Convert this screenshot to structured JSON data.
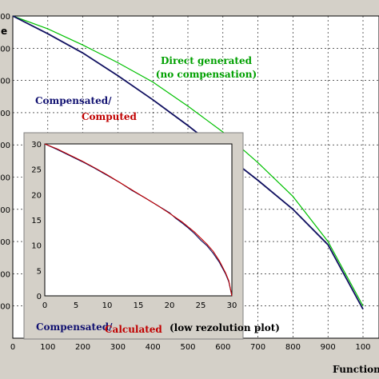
{
  "chart_data": [
    {
      "type": "line",
      "title": "",
      "xlabel": "Functions",
      "ylabel": "e",
      "xlim": [
        0,
        1000
      ],
      "ylim": [
        0,
        1000
      ],
      "grid": true,
      "x_ticks": [
        "0",
        "100",
        "200",
        "300",
        "400",
        "500",
        "600",
        "700",
        "800",
        "900",
        "100"
      ],
      "y_ticks": [
        "00",
        "00",
        "00",
        "00",
        "00",
        "00",
        "00",
        "00",
        "00",
        "00"
      ],
      "series": [
        {
          "name": "Direct generated (no compensation)",
          "color": "#00c000",
          "x": [
            0,
            100,
            200,
            300,
            400,
            500,
            600,
            700,
            800,
            900,
            1000
          ],
          "y": [
            1000,
            960,
            910,
            855,
            795,
            720,
            640,
            545,
            440,
            300,
            100
          ]
        },
        {
          "name": "Compensated/Computed",
          "color": "#101060",
          "x": [
            0,
            100,
            200,
            300,
            400,
            500,
            600,
            700,
            800,
            900,
            1000
          ],
          "y": [
            1000,
            945,
            885,
            815,
            740,
            660,
            575,
            490,
            400,
            290,
            90
          ]
        }
      ],
      "annotations": [
        {
          "text": "Direct generated",
          "color": "#00a000"
        },
        {
          "text": "(no compensation)",
          "color": "#00a000"
        },
        {
          "text": "Compensated/",
          "color": "#101070"
        },
        {
          "text": "Computed",
          "color": "#c00000"
        }
      ]
    },
    {
      "type": "line",
      "title": "",
      "xlim": [
        0,
        30
      ],
      "ylim": [
        0,
        30
      ],
      "grid": false,
      "x_ticks": [
        "0",
        "5",
        "10",
        "15",
        "20",
        "25",
        "30"
      ],
      "y_ticks": [
        "0",
        "5",
        "10",
        "15",
        "20",
        "25",
        "30"
      ],
      "series": [
        {
          "name": "Compensated",
          "color": "#101060",
          "x": [
            0,
            2,
            4,
            6,
            8,
            10,
            12,
            14,
            16,
            18,
            20,
            21,
            22,
            23,
            24,
            25,
            26,
            27,
            28,
            29,
            29.5,
            30
          ],
          "y": [
            30,
            28.9,
            27.7,
            26.5,
            25.2,
            23.8,
            22.4,
            20.8,
            19.4,
            17.9,
            16.4,
            15.3,
            14.4,
            13.4,
            12.3,
            11.0,
            9.9,
            8.4,
            6.6,
            4.3,
            2.8,
            0
          ]
        },
        {
          "name": "Calculated",
          "color": "#c00000",
          "x": [
            0,
            2,
            4,
            6,
            8,
            10,
            12,
            14,
            16,
            18,
            20,
            22,
            24,
            26,
            27,
            28,
            29,
            29.5,
            30
          ],
          "y": [
            30,
            29.0,
            27.8,
            26.6,
            25.3,
            23.9,
            22.4,
            20.9,
            19.4,
            17.9,
            16.3,
            14.6,
            12.6,
            10.2,
            8.8,
            6.9,
            4.5,
            3.0,
            0
          ]
        }
      ],
      "annotations": [
        {
          "text": "Compensated/",
          "color": "#101070"
        },
        {
          "text": "Calculated",
          "color": "#c00000"
        },
        {
          "text": "(low rezolution plot)",
          "color": "#000000"
        }
      ]
    }
  ]
}
